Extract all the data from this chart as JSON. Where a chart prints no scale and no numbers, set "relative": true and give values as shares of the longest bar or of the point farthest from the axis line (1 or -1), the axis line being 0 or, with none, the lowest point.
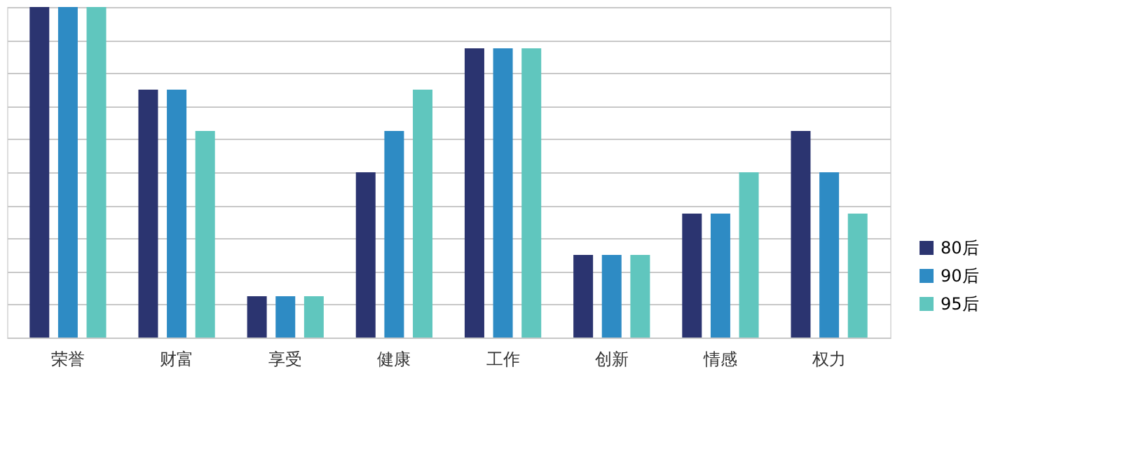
{
  "chart_data": {
    "type": "bar",
    "relative": true,
    "categories": [
      "荣誉",
      "财富",
      "享受",
      "健康",
      "工作",
      "创新",
      "情感",
      "权力"
    ],
    "series": [
      {
        "name": "80后",
        "color": "#2b3470",
        "values": [
          1,
          0.75,
          0.125,
          0.5,
          0.875,
          0.25,
          0.375,
          0.625
        ]
      },
      {
        "name": "90后",
        "color": "#2e8bc4",
        "values": [
          1,
          0.75,
          0.125,
          0.625,
          0.875,
          0.25,
          0.375,
          0.5
        ]
      },
      {
        "name": "95后",
        "color": "#60c6be",
        "values": [
          1,
          0.625,
          0.125,
          0.75,
          0.875,
          0.25,
          0.5,
          0.375
        ]
      }
    ],
    "grid": "y",
    "legend": "bottom right"
  }
}
